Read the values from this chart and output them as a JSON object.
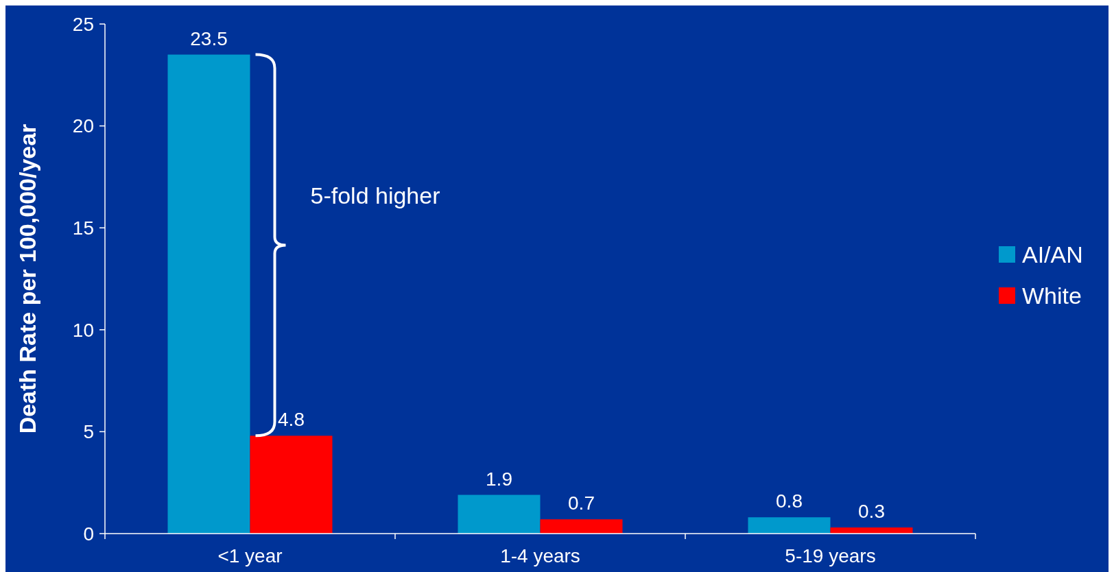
{
  "chart_data": {
    "type": "bar",
    "ylabel": "Death Rate per 100,000/year",
    "categories": [
      "<1 year",
      "1-4 years",
      "5-19 years"
    ],
    "series": [
      {
        "name": "AI/AN",
        "color": "#0099cc",
        "values": [
          23.5,
          1.9,
          0.8
        ]
      },
      {
        "name": "White",
        "color": "#ff0000",
        "values": [
          4.8,
          0.7,
          0.3
        ]
      }
    ],
    "ylim": [
      0,
      25
    ],
    "yticks": [
      0,
      5,
      10,
      15,
      20,
      25
    ],
    "data_labels": true,
    "legend": "right",
    "grid": false,
    "annotations": [
      "5-fold higher"
    ]
  }
}
